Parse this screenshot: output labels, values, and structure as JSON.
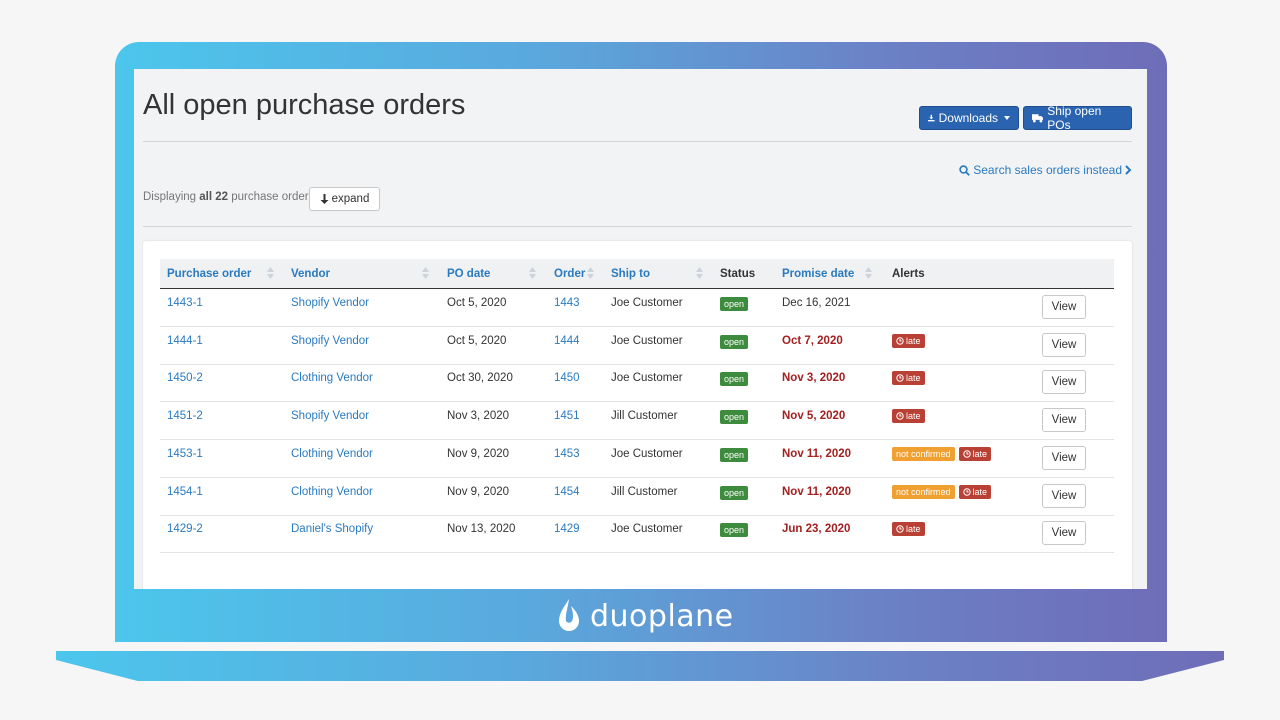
{
  "page": {
    "title": "All open purchase orders",
    "downloads_label": "Downloads",
    "ship_label": "Ship open POs",
    "search_link": "Search sales orders instead",
    "display_prefix": "Displaying ",
    "display_all": "all 22",
    "display_suffix": " purchase orders",
    "expand_label": "expand"
  },
  "colors": {
    "primary": "#2a64b0",
    "link": "#2a7ac0",
    "open": "#3d8b3d",
    "late": "#b94034",
    "not_confirmed": "#f0a030",
    "overdue_text": "#a32020"
  },
  "table": {
    "headers": {
      "purchase_order": "Purchase order",
      "vendor": "Vendor",
      "po_date": "PO date",
      "order": "Order",
      "ship_to": "Ship to",
      "status": "Status",
      "promise_date": "Promise date",
      "alerts": "Alerts"
    },
    "rows": [
      {
        "po": "1443-1",
        "vendor": "Shopify Vendor",
        "po_date": "Oct 5, 2020",
        "order": "1443",
        "ship_to": "Joe Customer",
        "status": "open",
        "promise": "Dec 16, 2021",
        "late": "",
        "not_confirmed": "",
        "view": "View"
      },
      {
        "po": "1444-1",
        "vendor": "Shopify Vendor",
        "po_date": "Oct 5, 2020",
        "order": "1444",
        "ship_to": "Joe Customer",
        "status": "open",
        "promise": "Oct 7, 2020",
        "late": "late",
        "not_confirmed": "",
        "view": "View"
      },
      {
        "po": "1450-2",
        "vendor": "Clothing Vendor",
        "po_date": "Oct 30, 2020",
        "order": "1450",
        "ship_to": "Joe Customer",
        "status": "open",
        "promise": "Nov 3, 2020",
        "late": "late",
        "not_confirmed": "",
        "view": "View"
      },
      {
        "po": "1451-2",
        "vendor": "Shopify Vendor",
        "po_date": "Nov 3, 2020",
        "order": "1451",
        "ship_to": "Jill Customer",
        "status": "open",
        "promise": "Nov 5, 2020",
        "late": "late",
        "not_confirmed": "",
        "view": "View"
      },
      {
        "po": "1453-1",
        "vendor": "Clothing Vendor",
        "po_date": "Nov 9, 2020",
        "order": "1453",
        "ship_to": "Joe Customer",
        "status": "open",
        "promise": "Nov 11, 2020",
        "late": "late",
        "not_confirmed": "not confirmed",
        "view": "View"
      },
      {
        "po": "1454-1",
        "vendor": "Clothing Vendor",
        "po_date": "Nov 9, 2020",
        "order": "1454",
        "ship_to": "Jill Customer",
        "status": "open",
        "promise": "Nov 11, 2020",
        "late": "late",
        "not_confirmed": "not confirmed",
        "view": "View"
      },
      {
        "po": "1429-2",
        "vendor": "Daniel's Shopify",
        "po_date": "Nov 13, 2020",
        "order": "1429",
        "ship_to": "Joe Customer",
        "status": "open",
        "promise": "Jun 23, 2020",
        "late": "late",
        "not_confirmed": "",
        "view": "View"
      }
    ]
  },
  "brand": {
    "name": "duoplane"
  },
  "icons": {
    "downloads": "download-icon",
    "ship": "truck-icon",
    "search": "search-icon",
    "search_chevron": "chevron-right-icon",
    "expand": "arrow-down-icon",
    "late": "clock-icon",
    "sort": "sort-icon",
    "brand": "duoplane-logo-icon"
  }
}
